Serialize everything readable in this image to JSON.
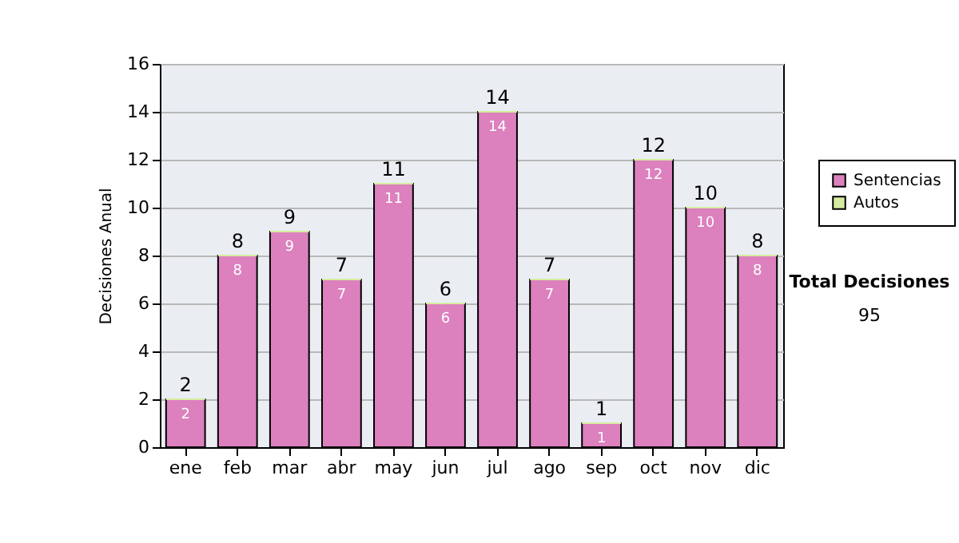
{
  "chart_data": {
    "type": "bar",
    "stacked": true,
    "ylabel": "Decisiones Anual",
    "categories": [
      "ene",
      "feb",
      "mar",
      "abr",
      "may",
      "jun",
      "jul",
      "ago",
      "sep",
      "oct",
      "nov",
      "dic"
    ],
    "series": [
      {
        "name": "Sentencias",
        "color": "#dc80be",
        "values": [
          2,
          8,
          9,
          7,
          11,
          6,
          14,
          7,
          1,
          12,
          10,
          8
        ],
        "value_labels": [
          "2",
          "8",
          "9",
          "7",
          "11",
          "6",
          "14",
          "7",
          "1",
          "12",
          "10",
          "8"
        ]
      },
      {
        "name": "Autos",
        "color": "#d6eca0",
        "values": [
          0,
          0,
          0,
          0,
          0,
          0,
          0,
          0,
          0,
          0,
          0,
          0
        ]
      }
    ],
    "totals": [
      "2",
      "8",
      "9",
      "7",
      "11",
      "6",
      "14",
      "7",
      "1",
      "12",
      "10",
      "8"
    ],
    "ylim": [
      0,
      16
    ],
    "yticks": [
      0,
      2,
      4,
      6,
      8,
      10,
      12,
      14,
      16
    ],
    "grid": "y",
    "legend": "right",
    "annotations": [
      "Total Decisiones",
      "95"
    ]
  }
}
